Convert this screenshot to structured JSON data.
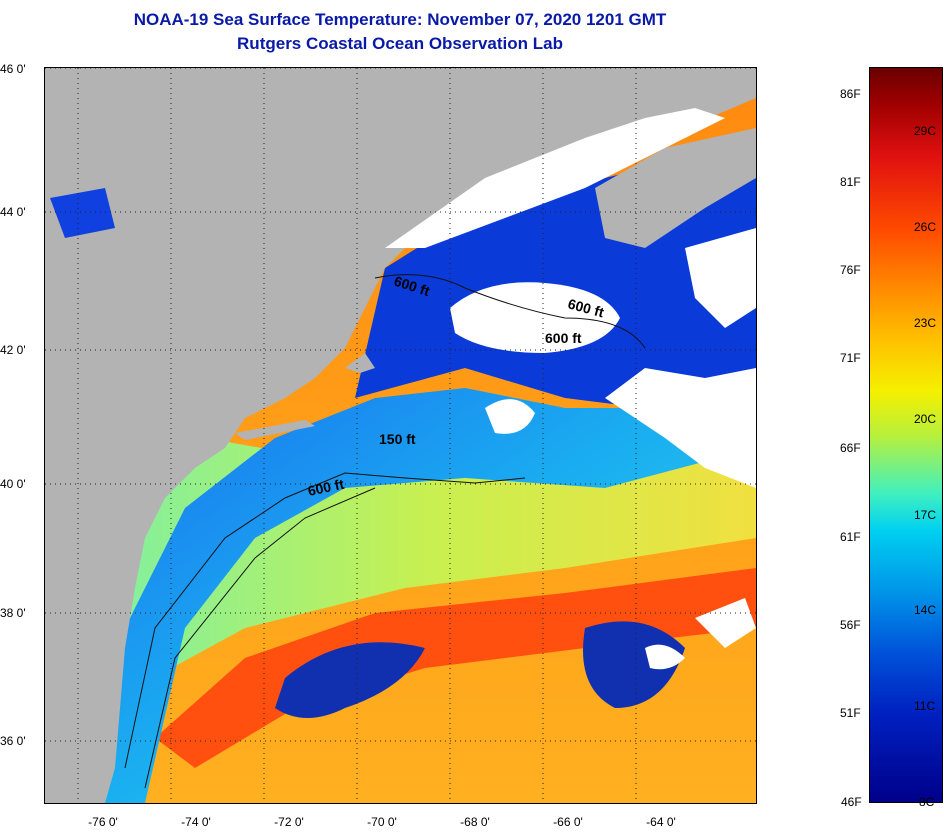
{
  "header": {
    "title": "NOAA-19 Sea Surface Temperature:  November 07, 2020 1201 GMT",
    "subtitle": "Rutgers Coastal Ocean Observation Lab"
  },
  "map": {
    "lat_labels": [
      "46 0'",
      "44 0'",
      "42 0'",
      "40 0'",
      "38 0'",
      "36 0'"
    ],
    "lon_labels": [
      "-76 0'",
      "-74 0'",
      "-72 0'",
      "-70 0'",
      "-68 0'",
      "-66 0'",
      "-64 0'"
    ],
    "isobath_labels": [
      "600 ft",
      "600 ft",
      "600 ft",
      "150 ft",
      "600 ft"
    ],
    "colors": {
      "land": "#b3b3b3",
      "cloud": "#ffffff",
      "cold": "#0a2ad8",
      "shelf": "#1aa6f0",
      "slope": "#9cf06a",
      "gulfstream": "#ff6a10",
      "warm": "#ffae20"
    }
  },
  "colorbar": {
    "fahrenheit_labels": [
      "86F",
      "81F",
      "76F",
      "71F",
      "66F",
      "61F",
      "56F",
      "51F"
    ],
    "celsius_labels": [
      "29C",
      "26C",
      "23C",
      "20C",
      "17C",
      "14C",
      "11C"
    ],
    "bottom_f": "46F",
    "bottom_c": "8C"
  }
}
